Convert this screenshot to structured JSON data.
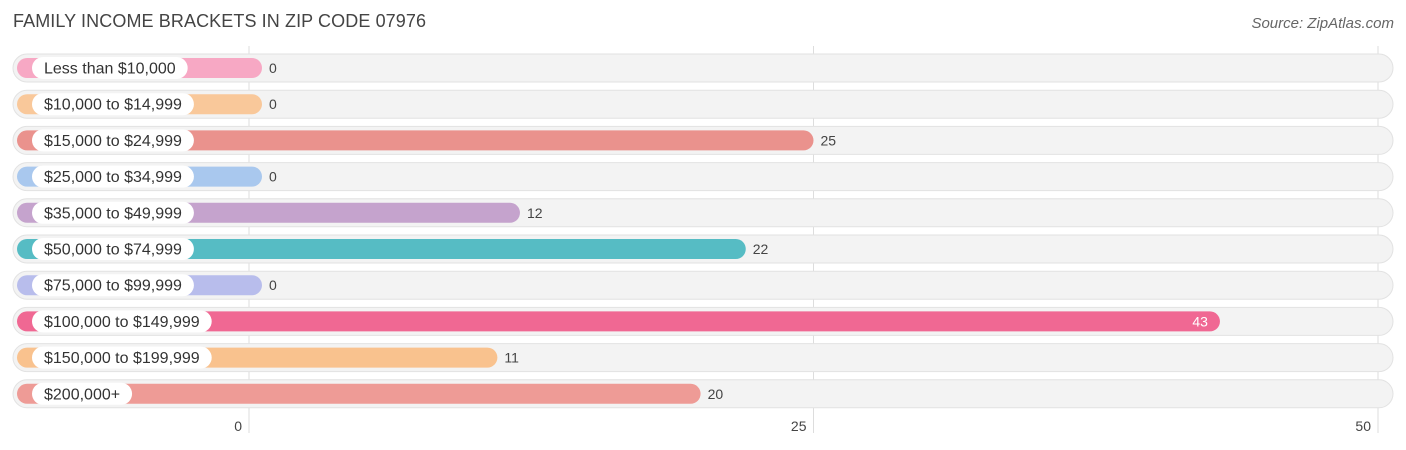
{
  "title": "FAMILY INCOME BRACKETS IN ZIP CODE 07976",
  "source": "Source: ZipAtlas.com",
  "chart_data": {
    "type": "bar",
    "orientation": "horizontal",
    "categories": [
      "Less than $10,000",
      "$10,000 to $14,999",
      "$15,000 to $24,999",
      "$25,000 to $34,999",
      "$35,000 to $49,999",
      "$50,000 to $74,999",
      "$75,000 to $99,999",
      "$100,000 to $149,999",
      "$150,000 to $199,999",
      "$200,000+"
    ],
    "values": [
      0,
      0,
      25,
      0,
      12,
      22,
      0,
      43,
      11,
      20
    ],
    "colors": [
      "#f7a8c4",
      "#f9c89a",
      "#ea928d",
      "#a9c8ee",
      "#c5a3cd",
      "#56bcc4",
      "#b8bdec",
      "#f06893",
      "#f9c28e",
      "#ee9b96"
    ],
    "xlim": [
      0,
      50
    ],
    "xticks": [
      0,
      25,
      50
    ],
    "grid": true
  }
}
